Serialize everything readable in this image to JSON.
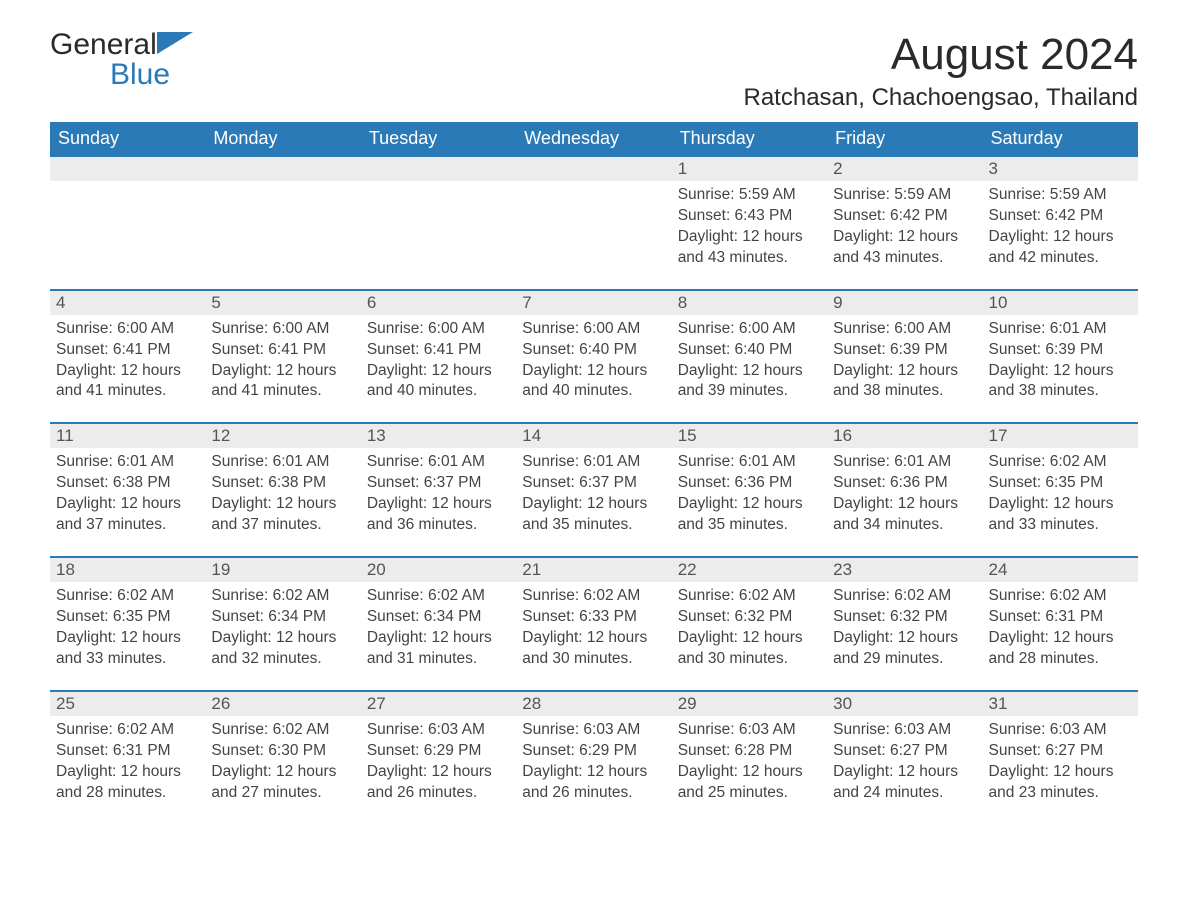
{
  "logo": {
    "text1": "General",
    "text2": "Blue"
  },
  "title": "August 2024",
  "location": "Ratchasan, Chachoengsao, Thailand",
  "colors": {
    "header_bg": "#2a7ab8",
    "header_text": "#ffffff",
    "daynum_bg": "#ececec",
    "text": "#333333",
    "accent_blue": "#2a7ab8"
  },
  "font": {
    "title_size": 44,
    "location_size": 24,
    "header_size": 18,
    "body_size": 15.5
  },
  "days_of_week": [
    "Sunday",
    "Monday",
    "Tuesday",
    "Wednesday",
    "Thursday",
    "Friday",
    "Saturday"
  ],
  "weeks": [
    [
      null,
      null,
      null,
      null,
      {
        "n": "1",
        "sunrise": "5:59 AM",
        "sunset": "6:43 PM",
        "daylight": "12 hours and 43 minutes."
      },
      {
        "n": "2",
        "sunrise": "5:59 AM",
        "sunset": "6:42 PM",
        "daylight": "12 hours and 43 minutes."
      },
      {
        "n": "3",
        "sunrise": "5:59 AM",
        "sunset": "6:42 PM",
        "daylight": "12 hours and 42 minutes."
      }
    ],
    [
      {
        "n": "4",
        "sunrise": "6:00 AM",
        "sunset": "6:41 PM",
        "daylight": "12 hours and 41 minutes."
      },
      {
        "n": "5",
        "sunrise": "6:00 AM",
        "sunset": "6:41 PM",
        "daylight": "12 hours and 41 minutes."
      },
      {
        "n": "6",
        "sunrise": "6:00 AM",
        "sunset": "6:41 PM",
        "daylight": "12 hours and 40 minutes."
      },
      {
        "n": "7",
        "sunrise": "6:00 AM",
        "sunset": "6:40 PM",
        "daylight": "12 hours and 40 minutes."
      },
      {
        "n": "8",
        "sunrise": "6:00 AM",
        "sunset": "6:40 PM",
        "daylight": "12 hours and 39 minutes."
      },
      {
        "n": "9",
        "sunrise": "6:00 AM",
        "sunset": "6:39 PM",
        "daylight": "12 hours and 38 minutes."
      },
      {
        "n": "10",
        "sunrise": "6:01 AM",
        "sunset": "6:39 PM",
        "daylight": "12 hours and 38 minutes."
      }
    ],
    [
      {
        "n": "11",
        "sunrise": "6:01 AM",
        "sunset": "6:38 PM",
        "daylight": "12 hours and 37 minutes."
      },
      {
        "n": "12",
        "sunrise": "6:01 AM",
        "sunset": "6:38 PM",
        "daylight": "12 hours and 37 minutes."
      },
      {
        "n": "13",
        "sunrise": "6:01 AM",
        "sunset": "6:37 PM",
        "daylight": "12 hours and 36 minutes."
      },
      {
        "n": "14",
        "sunrise": "6:01 AM",
        "sunset": "6:37 PM",
        "daylight": "12 hours and 35 minutes."
      },
      {
        "n": "15",
        "sunrise": "6:01 AM",
        "sunset": "6:36 PM",
        "daylight": "12 hours and 35 minutes."
      },
      {
        "n": "16",
        "sunrise": "6:01 AM",
        "sunset": "6:36 PM",
        "daylight": "12 hours and 34 minutes."
      },
      {
        "n": "17",
        "sunrise": "6:02 AM",
        "sunset": "6:35 PM",
        "daylight": "12 hours and 33 minutes."
      }
    ],
    [
      {
        "n": "18",
        "sunrise": "6:02 AM",
        "sunset": "6:35 PM",
        "daylight": "12 hours and 33 minutes."
      },
      {
        "n": "19",
        "sunrise": "6:02 AM",
        "sunset": "6:34 PM",
        "daylight": "12 hours and 32 minutes."
      },
      {
        "n": "20",
        "sunrise": "6:02 AM",
        "sunset": "6:34 PM",
        "daylight": "12 hours and 31 minutes."
      },
      {
        "n": "21",
        "sunrise": "6:02 AM",
        "sunset": "6:33 PM",
        "daylight": "12 hours and 30 minutes."
      },
      {
        "n": "22",
        "sunrise": "6:02 AM",
        "sunset": "6:32 PM",
        "daylight": "12 hours and 30 minutes."
      },
      {
        "n": "23",
        "sunrise": "6:02 AM",
        "sunset": "6:32 PM",
        "daylight": "12 hours and 29 minutes."
      },
      {
        "n": "24",
        "sunrise": "6:02 AM",
        "sunset": "6:31 PM",
        "daylight": "12 hours and 28 minutes."
      }
    ],
    [
      {
        "n": "25",
        "sunrise": "6:02 AM",
        "sunset": "6:31 PM",
        "daylight": "12 hours and 28 minutes."
      },
      {
        "n": "26",
        "sunrise": "6:02 AM",
        "sunset": "6:30 PM",
        "daylight": "12 hours and 27 minutes."
      },
      {
        "n": "27",
        "sunrise": "6:03 AM",
        "sunset": "6:29 PM",
        "daylight": "12 hours and 26 minutes."
      },
      {
        "n": "28",
        "sunrise": "6:03 AM",
        "sunset": "6:29 PM",
        "daylight": "12 hours and 26 minutes."
      },
      {
        "n": "29",
        "sunrise": "6:03 AM",
        "sunset": "6:28 PM",
        "daylight": "12 hours and 25 minutes."
      },
      {
        "n": "30",
        "sunrise": "6:03 AM",
        "sunset": "6:27 PM",
        "daylight": "12 hours and 24 minutes."
      },
      {
        "n": "31",
        "sunrise": "6:03 AM",
        "sunset": "6:27 PM",
        "daylight": "12 hours and 23 minutes."
      }
    ]
  ],
  "labels": {
    "sunrise": "Sunrise: ",
    "sunset": "Sunset: ",
    "daylight": "Daylight: "
  }
}
